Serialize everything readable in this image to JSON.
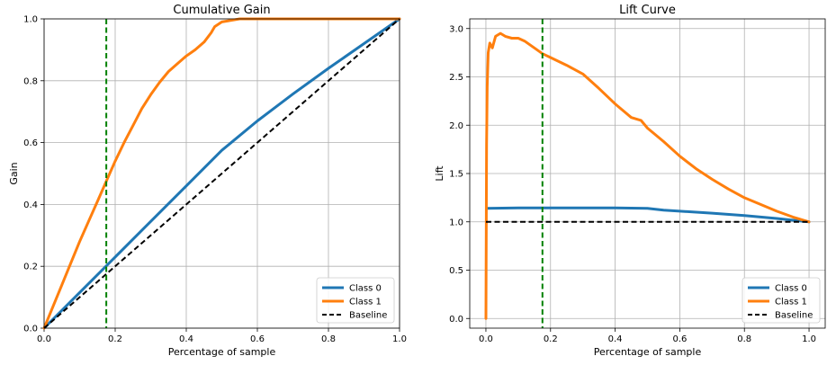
{
  "chart_data": [
    {
      "type": "line",
      "title": "Cumulative Gain",
      "xlabel": "Percentage of sample",
      "ylabel": "Gain",
      "xlim": [
        0.0,
        1.0
      ],
      "ylim": [
        0.0,
        1.0
      ],
      "xticks": [
        "0.0",
        "0.2",
        "0.4",
        "0.6",
        "0.8",
        "1.0"
      ],
      "yticks": [
        "0.0",
        "0.2",
        "0.4",
        "0.6",
        "0.8",
        "1.0"
      ],
      "grid": true,
      "legend_position": "lower-right",
      "vline_x": 0.175,
      "series": [
        {
          "name": "Class 0",
          "color": "#1f77b4",
          "points": [
            [
              0.0,
              0.0
            ],
            [
              0.1,
              0.115
            ],
            [
              0.2,
              0.23
            ],
            [
              0.3,
              0.345
            ],
            [
              0.4,
              0.46
            ],
            [
              0.5,
              0.575
            ],
            [
              0.6,
              0.67
            ],
            [
              0.7,
              0.757
            ],
            [
              0.8,
              0.84
            ],
            [
              0.9,
              0.92
            ],
            [
              1.0,
              1.0
            ]
          ]
        },
        {
          "name": "Class 1",
          "color": "#ff7f0e",
          "points": [
            [
              0.0,
              0.0
            ],
            [
              0.025,
              0.07
            ],
            [
              0.05,
              0.14
            ],
            [
              0.075,
              0.21
            ],
            [
              0.1,
              0.28
            ],
            [
              0.125,
              0.345
            ],
            [
              0.15,
              0.41
            ],
            [
              0.175,
              0.475
            ],
            [
              0.2,
              0.54
            ],
            [
              0.225,
              0.6
            ],
            [
              0.25,
              0.655
            ],
            [
              0.275,
              0.71
            ],
            [
              0.3,
              0.755
            ],
            [
              0.325,
              0.795
            ],
            [
              0.35,
              0.83
            ],
            [
              0.375,
              0.855
            ],
            [
              0.4,
              0.88
            ],
            [
              0.425,
              0.9
            ],
            [
              0.45,
              0.925
            ],
            [
              0.47,
              0.955
            ],
            [
              0.48,
              0.975
            ],
            [
              0.5,
              0.99
            ],
            [
              0.55,
              1.0
            ],
            [
              1.0,
              1.0
            ]
          ]
        },
        {
          "name": "Baseline",
          "color": "#000000",
          "dashed": true,
          "points": [
            [
              0.0,
              0.0
            ],
            [
              1.0,
              1.0
            ]
          ]
        }
      ]
    },
    {
      "type": "line",
      "title": "Lift Curve",
      "xlabel": "Percentage of sample",
      "ylabel": "Lift",
      "xlim": [
        -0.05,
        1.05
      ],
      "ylim": [
        -0.1,
        3.1
      ],
      "xticks": [
        "0.0",
        "0.2",
        "0.4",
        "0.6",
        "0.8",
        "1.0"
      ],
      "yticks": [
        "0.0",
        "0.5",
        "1.0",
        "1.5",
        "2.0",
        "2.5",
        "3.0"
      ],
      "grid": true,
      "legend_position": "lower-right",
      "vline_x": 0.175,
      "series": [
        {
          "name": "Class 0",
          "color": "#1f77b4",
          "points": [
            [
              0.002,
              1.14
            ],
            [
              0.1,
              1.145
            ],
            [
              0.2,
              1.145
            ],
            [
              0.3,
              1.145
            ],
            [
              0.4,
              1.145
            ],
            [
              0.5,
              1.14
            ],
            [
              0.55,
              1.12
            ],
            [
              0.6,
              1.11
            ],
            [
              0.7,
              1.09
            ],
            [
              0.8,
              1.065
            ],
            [
              0.9,
              1.035
            ],
            [
              1.0,
              1.0
            ]
          ]
        },
        {
          "name": "Class 1",
          "color": "#ff7f0e",
          "points": [
            [
              0.0,
              0.0
            ],
            [
              0.002,
              1.8
            ],
            [
              0.004,
              2.4
            ],
            [
              0.007,
              2.75
            ],
            [
              0.012,
              2.85
            ],
            [
              0.02,
              2.8
            ],
            [
              0.03,
              2.92
            ],
            [
              0.045,
              2.95
            ],
            [
              0.06,
              2.92
            ],
            [
              0.08,
              2.9
            ],
            [
              0.1,
              2.9
            ],
            [
              0.12,
              2.87
            ],
            [
              0.15,
              2.8
            ],
            [
              0.175,
              2.74
            ],
            [
              0.2,
              2.7
            ],
            [
              0.25,
              2.62
            ],
            [
              0.3,
              2.53
            ],
            [
              0.35,
              2.38
            ],
            [
              0.4,
              2.22
            ],
            [
              0.45,
              2.08
            ],
            [
              0.48,
              2.05
            ],
            [
              0.5,
              1.97
            ],
            [
              0.55,
              1.83
            ],
            [
              0.6,
              1.68
            ],
            [
              0.65,
              1.55
            ],
            [
              0.7,
              1.44
            ],
            [
              0.75,
              1.34
            ],
            [
              0.8,
              1.25
            ],
            [
              0.85,
              1.18
            ],
            [
              0.9,
              1.11
            ],
            [
              0.95,
              1.05
            ],
            [
              1.0,
              1.0
            ]
          ]
        },
        {
          "name": "Baseline",
          "color": "#000000",
          "dashed": true,
          "points": [
            [
              0.0,
              1.0
            ],
            [
              1.0,
              1.0
            ]
          ]
        }
      ]
    }
  ]
}
